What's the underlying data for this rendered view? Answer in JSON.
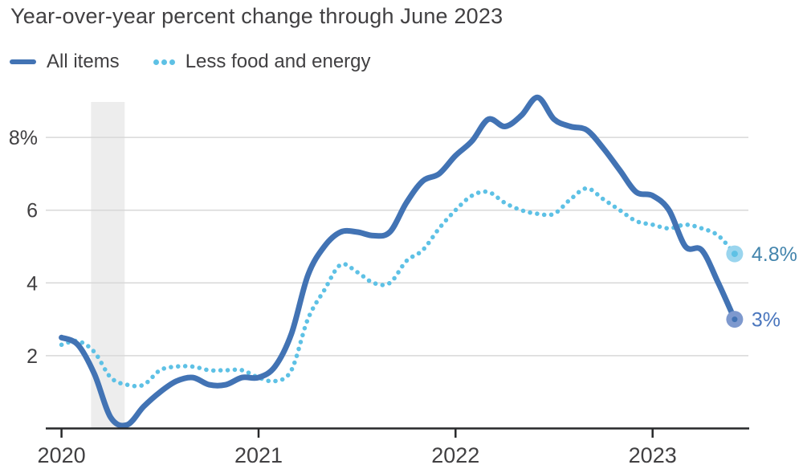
{
  "title": "Year-over-year percent change through June 2023",
  "legend": {
    "items": [
      {
        "label": "All items",
        "swatch": "solid-line"
      },
      {
        "label": "Less food and energy",
        "swatch": "dotted-line"
      }
    ]
  },
  "colors": {
    "all_items_line": "#4273b4",
    "core_line": "#5ec1e5",
    "all_items_end_marker": "#7e99ce",
    "core_end_marker": "#9ad5ee",
    "all_items_end_label": "#4a76bd",
    "core_end_label": "#4485ad",
    "recession_band": "#ededed",
    "gridline": "#d8d8d8",
    "axis": "#27282a",
    "text": "#414042"
  },
  "chart_data": {
    "type": "line",
    "title": "Year-over-year percent change through June 2023",
    "x_start": "2020-01",
    "x_end": "2023-06",
    "x_unit": "month",
    "ylim": [
      0,
      9.1
    ],
    "grid": "horizontal",
    "legend_position": "top-left",
    "x_tick_labels": [
      "2020",
      "2021",
      "2022",
      "2023"
    ],
    "x_tick_month_indices": [
      0,
      12,
      24,
      36
    ],
    "y_ticks": [
      {
        "value": 8,
        "label": "8%"
      },
      {
        "value": 6,
        "label": "6"
      },
      {
        "value": 4,
        "label": "4"
      },
      {
        "value": 2,
        "label": "2"
      }
    ],
    "recession_band": {
      "description": "COVID-19 recession shading (Mar-Apr 2020)",
      "start_month_index": 1.8,
      "end_month_index": 3.85
    },
    "series": [
      {
        "name": "All items",
        "style": "solid",
        "color": "#4273b4",
        "end_label": "3%",
        "end_value": 3.0,
        "values": [
          2.5,
          2.3,
          1.5,
          0.3,
          0.1,
          0.6,
          1.0,
          1.3,
          1.4,
          1.2,
          1.2,
          1.4,
          1.4,
          1.7,
          2.6,
          4.2,
          5.0,
          5.4,
          5.4,
          5.3,
          5.4,
          6.2,
          6.8,
          7.0,
          7.5,
          7.9,
          8.5,
          8.3,
          8.6,
          9.1,
          8.5,
          8.3,
          8.2,
          7.7,
          7.1,
          6.5,
          6.4,
          6.0,
          5.0,
          4.9,
          4.0,
          3.0
        ]
      },
      {
        "name": "Less food and energy",
        "style": "dotted",
        "color": "#5ec1e5",
        "end_label": "4.8%",
        "end_value": 4.8,
        "values": [
          2.3,
          2.4,
          2.1,
          1.4,
          1.2,
          1.2,
          1.6,
          1.7,
          1.7,
          1.6,
          1.6,
          1.6,
          1.4,
          1.3,
          1.6,
          3.0,
          3.8,
          4.5,
          4.3,
          4.0,
          4.0,
          4.6,
          4.9,
          5.5,
          6.0,
          6.4,
          6.5,
          6.2,
          6.0,
          5.9,
          5.9,
          6.3,
          6.6,
          6.3,
          6.0,
          5.7,
          5.6,
          5.5,
          5.6,
          5.5,
          5.3,
          4.8
        ]
      }
    ]
  }
}
